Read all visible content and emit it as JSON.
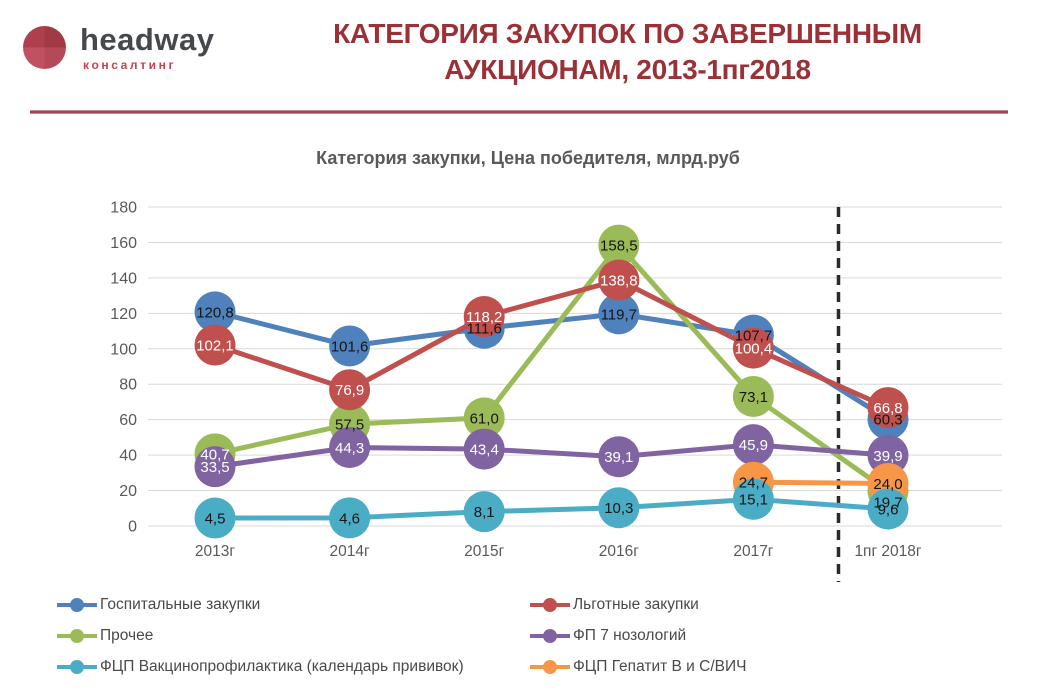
{
  "header": {
    "brand": "headway",
    "brand_subtitle": "консалтинг",
    "title_line1": "КАТЕГОРИЯ ЗАКУПОК ПО ЗАВЕРШЕННЫМ",
    "title_line2": "АУКЦИОНАМ, 2013-1пг2018",
    "title_color": "#9a3136",
    "separator_color": "#a04250"
  },
  "chart_data": {
    "type": "line",
    "title": "Категория закупки, Цена победителя, млрд.руб",
    "categories": [
      "2013г",
      "2014г",
      "2015г",
      "2016г",
      "2017г",
      "1пг 2018г"
    ],
    "series": [
      {
        "name": "Госпитальные закупки",
        "color": "#4f81bd",
        "values": [
          120.8,
          101.6,
          111.6,
          119.7,
          107.7,
          60.3
        ],
        "labels": [
          "120,8",
          "101,6",
          "111,6",
          "119,7",
          "107,7",
          "60,3"
        ],
        "label_color": "dark"
      },
      {
        "name": "Льготные закупки",
        "color": "#c0504d",
        "values": [
          102.1,
          76.9,
          118.2,
          138.8,
          100.4,
          66.8
        ],
        "labels": [
          "102,1",
          "76,9",
          "118,2",
          "138,8",
          "100,4",
          "66,8"
        ],
        "label_color": "light"
      },
      {
        "name": "Прочее",
        "color": "#9bbb59",
        "values": [
          40.7,
          57.5,
          61.0,
          158.5,
          73.1,
          19.7
        ],
        "labels": [
          "40,7",
          "57,5",
          "61,0",
          "158,5",
          "73,1",
          "19,7"
        ],
        "label_colors": [
          "light",
          "dark",
          "dark",
          "dark",
          "dark",
          "dark"
        ],
        "label_dy": [
          0,
          0,
          0,
          0,
          0,
          11
        ]
      },
      {
        "name": "ФП 7 нозологий",
        "color": "#8064a2",
        "values": [
          33.5,
          44.3,
          43.4,
          39.1,
          45.9,
          39.9
        ],
        "labels": [
          "33,5",
          "44,3",
          "43,4",
          "39,1",
          "45,9",
          "39,9"
        ],
        "label_color": "light"
      },
      {
        "name": "ФЦП Вакцинопрофилактика (календарь прививок)",
        "color": "#4bacc6",
        "values": [
          4.5,
          4.6,
          8.1,
          10.3,
          15.1,
          9.6
        ],
        "labels": [
          "4,5",
          "4,6",
          "8,1",
          "10,3",
          "15,1",
          "9,6"
        ],
        "label_color": "dark"
      },
      {
        "name": "ФЦП Гепатит В и С/ВИЧ",
        "color": "#f79646",
        "values": [
          null,
          null,
          null,
          null,
          24.7,
          24.0
        ],
        "labels": [
          null,
          null,
          null,
          null,
          "24,7",
          "24,0"
        ],
        "label_color": "dark"
      }
    ],
    "ylim": [
      0,
      180
    ],
    "ytick_step": 20,
    "grid": true,
    "legend_position": "bottom",
    "annotation": {
      "type": "dashed-vertical-line",
      "between": [
        "2017г",
        "1пг 2018г"
      ]
    },
    "draw_order": [
      0,
      2,
      1,
      3,
      5,
      4
    ],
    "legend_column_order": [
      0,
      2,
      4,
      1,
      3,
      5
    ]
  }
}
